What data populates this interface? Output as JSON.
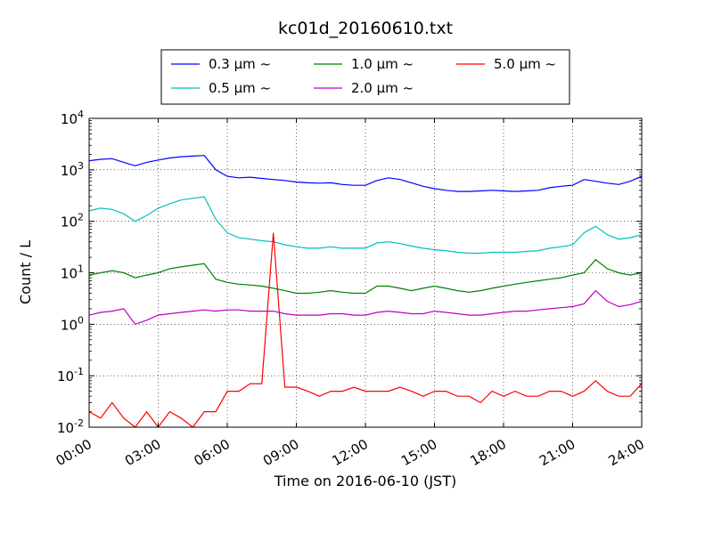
{
  "chart_data": {
    "type": "line",
    "title": "kc01d_20160610.txt",
    "xlabel": "Time on 2016-06-10 (JST)",
    "ylabel": "Count / L",
    "yscale": "log",
    "xlim": [
      "00:00",
      "24:00"
    ],
    "ylim": [
      0.01,
      10000
    ],
    "x_tick_labels": [
      "00:00",
      "03:00",
      "06:00",
      "09:00",
      "12:00",
      "15:00",
      "18:00",
      "21:00",
      "24:00"
    ],
    "y_tick_values": [
      0.01,
      0.1,
      1,
      10,
      100,
      1000,
      10000
    ],
    "y_tick_labels": [
      {
        "base": "10",
        "exp": "-2"
      },
      {
        "base": "10",
        "exp": "-1"
      },
      {
        "base": "10",
        "exp": "0"
      },
      {
        "base": "10",
        "exp": "1"
      },
      {
        "base": "10",
        "exp": "2"
      },
      {
        "base": "10",
        "exp": "3"
      },
      {
        "base": "10",
        "exp": "4"
      }
    ],
    "grid": true,
    "legend_position": "top",
    "x": [
      "00:00",
      "00:30",
      "01:00",
      "01:30",
      "02:00",
      "02:30",
      "03:00",
      "03:30",
      "04:00",
      "04:30",
      "05:00",
      "05:30",
      "06:00",
      "06:30",
      "07:00",
      "07:30",
      "08:00",
      "08:30",
      "09:00",
      "09:30",
      "10:00",
      "10:30",
      "11:00",
      "11:30",
      "12:00",
      "12:30",
      "13:00",
      "13:30",
      "14:00",
      "14:30",
      "15:00",
      "15:30",
      "16:00",
      "16:30",
      "17:00",
      "17:30",
      "18:00",
      "18:30",
      "19:00",
      "19:30",
      "20:00",
      "20:30",
      "21:00",
      "21:30",
      "22:00",
      "22:30",
      "23:00",
      "23:30",
      "24:00"
    ],
    "series": [
      {
        "name": "0.3 μm ~",
        "color": "#0000ff",
        "values": [
          1500,
          1600,
          1650,
          1400,
          1200,
          1400,
          1550,
          1700,
          1800,
          1850,
          1900,
          1000,
          750,
          700,
          720,
          680,
          650,
          620,
          580,
          560,
          550,
          560,
          520,
          500,
          500,
          620,
          700,
          650,
          560,
          480,
          430,
          400,
          380,
          380,
          390,
          400,
          390,
          380,
          390,
          400,
          450,
          480,
          500,
          650,
          600,
          550,
          520,
          600,
          750
        ]
      },
      {
        "name": "0.5 μm ~",
        "color": "#00bfbf",
        "values": [
          160,
          180,
          170,
          140,
          100,
          130,
          180,
          220,
          260,
          280,
          300,
          110,
          60,
          48,
          45,
          42,
          40,
          35,
          32,
          30,
          30,
          32,
          30,
          30,
          30,
          38,
          40,
          37,
          33,
          30,
          28,
          27,
          25,
          24,
          24,
          25,
          25,
          25,
          26,
          27,
          30,
          32,
          35,
          60,
          80,
          55,
          45,
          48,
          55
        ]
      },
      {
        "name": "1.0 μm ~",
        "color": "#008000",
        "values": [
          9,
          10,
          11,
          10,
          8,
          9,
          10,
          12,
          13,
          14,
          15,
          7.5,
          6.5,
          6,
          5.8,
          5.5,
          5,
          4.5,
          4,
          4,
          4.2,
          4.5,
          4.2,
          4,
          4,
          5.5,
          5.5,
          5,
          4.5,
          5,
          5.5,
          5,
          4.5,
          4.2,
          4.5,
          5,
          5.5,
          6,
          6.5,
          7,
          7.5,
          8,
          9,
          10,
          18,
          12,
          10,
          9,
          10
        ]
      },
      {
        "name": "2.0 μm ~",
        "color": "#bf00bf",
        "values": [
          1.5,
          1.7,
          1.8,
          2.0,
          1.0,
          1.2,
          1.5,
          1.6,
          1.7,
          1.8,
          1.9,
          1.8,
          1.9,
          1.9,
          1.8,
          1.8,
          1.8,
          1.6,
          1.5,
          1.5,
          1.5,
          1.6,
          1.6,
          1.5,
          1.5,
          1.7,
          1.8,
          1.7,
          1.6,
          1.6,
          1.8,
          1.7,
          1.6,
          1.5,
          1.5,
          1.6,
          1.7,
          1.8,
          1.8,
          1.9,
          2.0,
          2.1,
          2.2,
          2.5,
          4.5,
          2.8,
          2.2,
          2.4,
          2.8
        ]
      },
      {
        "name": "5.0 μm ~",
        "color": "#ff0000",
        "values": [
          0.02,
          0.015,
          0.03,
          0.015,
          0.01,
          0.02,
          0.01,
          0.02,
          0.015,
          0.01,
          0.02,
          0.02,
          0.05,
          0.05,
          0.07,
          0.07,
          60,
          0.06,
          0.06,
          0.05,
          0.04,
          0.05,
          0.05,
          0.06,
          0.05,
          0.05,
          0.05,
          0.06,
          0.05,
          0.04,
          0.05,
          0.05,
          0.04,
          0.04,
          0.03,
          0.05,
          0.04,
          0.05,
          0.04,
          0.04,
          0.05,
          0.05,
          0.04,
          0.05,
          0.08,
          0.05,
          0.04,
          0.04,
          0.07
        ]
      }
    ]
  }
}
